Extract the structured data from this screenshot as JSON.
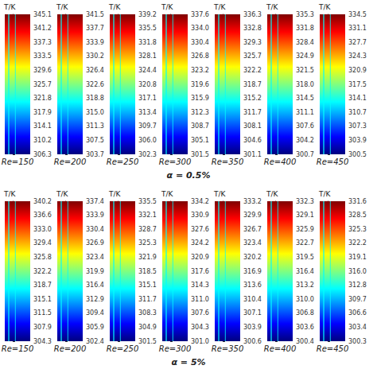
{
  "chart_data": [
    {
      "type": "colorbar",
      "title": "T/K",
      "xlabel": "Re=150",
      "grid": false,
      "ylim": [
        306.3,
        345.1
      ],
      "yticks": [
        345.1,
        {
          "value": 341.22,
          "label": "341.2"
        },
        {
          "value": 337.34,
          "label": "337.3"
        },
        {
          "value": 333.46,
          "label": "333.5"
        },
        {
          "value": 329.58,
          "label": "329.6"
        },
        325.7,
        {
          "value": 321.82,
          "label": "321.8"
        },
        {
          "value": 317.94,
          "label": "317.9"
        },
        {
          "value": 314.06,
          "label": "314.1"
        },
        {
          "value": 310.18,
          "label": "310.2"
        },
        306.3
      ],
      "annotation": "α = 0.5%"
    },
    {
      "type": "colorbar",
      "title": "T/K",
      "xlabel": "Re=200",
      "grid": false,
      "ylim": [
        303.7,
        341.5
      ],
      "yticks": [
        341.5,
        {
          "value": 337.72,
          "label": "337.7"
        },
        {
          "value": 333.94,
          "label": "333.9"
        },
        {
          "value": 330.16,
          "label": "330.2"
        },
        {
          "value": 326.38,
          "label": "326.4"
        },
        322.6,
        {
          "value": 318.82,
          "label": "318.8"
        },
        {
          "value": 315.04,
          "label": "315.0"
        },
        {
          "value": 311.26,
          "label": "311.3"
        },
        {
          "value": 307.48,
          "label": "307.5"
        },
        303.7
      ]
    },
    {
      "type": "colorbar",
      "title": "T/K",
      "xlabel": "Re=250",
      "grid": false,
      "ylim": [
        302.3,
        339.2
      ],
      "yticks": [
        339.2,
        {
          "value": 335.51,
          "label": "335.5"
        },
        {
          "value": 331.82,
          "label": "331.8"
        },
        {
          "value": 328.13,
          "label": "328.1"
        },
        {
          "value": 324.44,
          "label": "324.4"
        },
        {
          "value": 320.75,
          "label": "320.8"
        },
        {
          "value": 317.06,
          "label": "317.1"
        },
        {
          "value": 313.37,
          "label": "313.4"
        },
        {
          "value": 309.68,
          "label": "309.7"
        },
        {
          "value": 305.99,
          "label": "306.0"
        },
        302.3
      ]
    },
    {
      "type": "colorbar",
      "title": "T/K",
      "xlabel": "Re=300",
      "grid": false,
      "ylim": [
        301.5,
        337.6
      ],
      "yticks": [
        337.6,
        {
          "value": 333.99,
          "label": "334.0"
        },
        {
          "value": 330.38,
          "label": "330.4"
        },
        {
          "value": 326.77,
          "label": "326.8"
        },
        {
          "value": 323.16,
          "label": "323.2"
        },
        {
          "value": 319.55,
          "label": "319.6"
        },
        {
          "value": 315.94,
          "label": "315.9"
        },
        {
          "value": 312.33,
          "label": "312.3"
        },
        {
          "value": 308.72,
          "label": "308.7"
        },
        {
          "value": 305.11,
          "label": "305.1"
        },
        301.5
      ]
    },
    {
      "type": "colorbar",
      "title": "T/K",
      "xlabel": "Re=350",
      "grid": false,
      "ylim": [
        301.1,
        336.3
      ],
      "yticks": [
        336.3,
        {
          "value": 332.78,
          "label": "332.8"
        },
        {
          "value": 329.26,
          "label": "329.3"
        },
        {
          "value": 325.74,
          "label": "325.7"
        },
        {
          "value": 322.22,
          "label": "322.2"
        },
        318.7,
        {
          "value": 315.18,
          "label": "315.2"
        },
        {
          "value": 311.66,
          "label": "311.7"
        },
        {
          "value": 308.14,
          "label": "308.1"
        },
        {
          "value": 304.62,
          "label": "304.6"
        },
        301.1
      ]
    },
    {
      "type": "colorbar",
      "title": "T/K",
      "xlabel": "Re=400",
      "grid": false,
      "ylim": [
        300.7,
        335.3
      ],
      "yticks": [
        335.3,
        {
          "value": 331.84,
          "label": "331.8"
        },
        {
          "value": 328.38,
          "label": "328.4"
        },
        {
          "value": 324.92,
          "label": "324.9"
        },
        {
          "value": 321.46,
          "label": "321.5"
        },
        {
          "value": 318,
          "label": "318.0"
        },
        {
          "value": 314.54,
          "label": "314.5"
        },
        {
          "value": 311.08,
          "label": "311.1"
        },
        {
          "value": 307.62,
          "label": "307.6"
        },
        {
          "value": 304.16,
          "label": "304.2"
        },
        300.7
      ]
    },
    {
      "type": "colorbar",
      "title": "T/K",
      "xlabel": "Re=450",
      "grid": false,
      "ylim": [
        300.5,
        334.5
      ],
      "yticks": [
        334.5,
        331.1,
        327.7,
        324.3,
        320.9,
        317.5,
        314.1,
        310.7,
        307.3,
        303.9,
        300.5
      ]
    },
    {
      "type": "colorbar",
      "title": "T/K",
      "xlabel": "Re=150",
      "grid": false,
      "ylim": [
        304.3,
        340.2
      ],
      "yticks": [
        340.2,
        {
          "value": 336.61,
          "label": "336.6"
        },
        {
          "value": 333.02,
          "label": "333.0"
        },
        {
          "value": 329.43,
          "label": "329.4"
        },
        {
          "value": 325.84,
          "label": "325.8"
        },
        {
          "value": 322.25,
          "label": "322.2"
        },
        {
          "value": 318.66,
          "label": "318.7"
        },
        {
          "value": 315.07,
          "label": "315.1"
        },
        {
          "value": 311.48,
          "label": "311.5"
        },
        {
          "value": 307.89,
          "label": "307.9"
        },
        304.3
      ],
      "annotation": "α = 5%"
    },
    {
      "type": "colorbar",
      "title": "T/K",
      "xlabel": "Re=200",
      "grid": false,
      "ylim": [
        302.4,
        337.4
      ],
      "yticks": [
        337.4,
        333.9,
        330.4,
        326.9,
        323.4,
        319.9,
        316.4,
        312.9,
        309.4,
        305.9,
        302.4
      ]
    },
    {
      "type": "colorbar",
      "title": "T/K",
      "xlabel": "Re=250",
      "grid": false,
      "ylim": [
        301.5,
        335.5
      ],
      "yticks": [
        335.5,
        332.1,
        328.7,
        325.3,
        321.9,
        318.5,
        315.1,
        311.7,
        308.3,
        304.9,
        301.5
      ]
    },
    {
      "type": "colorbar",
      "title": "T/K",
      "xlabel": "Re=300",
      "grid": false,
      "ylim": [
        301.0,
        334.2
      ],
      "yticks": [
        334.2,
        {
          "value": 330.88,
          "label": "330.9"
        },
        {
          "value": 327.56,
          "label": "327.6"
        },
        {
          "value": 324.24,
          "label": "324.2"
        },
        {
          "value": 320.92,
          "label": "320.9"
        },
        317.6,
        {
          "value": 314.28,
          "label": "314.3"
        },
        {
          "value": 310.96,
          "label": "311.0"
        },
        {
          "value": 307.64,
          "label": "307.6"
        },
        {
          "value": 304.32,
          "label": "304.3"
        },
        {
          "value": 301,
          "label": "301.0"
        }
      ]
    },
    {
      "type": "colorbar",
      "title": "T/K",
      "xlabel": "Re=350",
      "grid": false,
      "ylim": [
        300.6,
        333.2
      ],
      "yticks": [
        333.2,
        {
          "value": 329.94,
          "label": "329.9"
        },
        {
          "value": 326.68,
          "label": "326.7"
        },
        {
          "value": 323.42,
          "label": "323.4"
        },
        {
          "value": 320.16,
          "label": "320.2"
        },
        316.9,
        {
          "value": 313.64,
          "label": "313.6"
        },
        {
          "value": 310.38,
          "label": "310.4"
        },
        {
          "value": 307.12,
          "label": "307.1"
        },
        {
          "value": 303.86,
          "label": "303.9"
        },
        300.6
      ]
    },
    {
      "type": "colorbar",
      "title": "T/K",
      "xlabel": "Re=400",
      "grid": false,
      "ylim": [
        300.4,
        332.3
      ],
      "yticks": [
        332.3,
        {
          "value": 329.11,
          "label": "329.1"
        },
        {
          "value": 325.92,
          "label": "325.9"
        },
        {
          "value": 322.73,
          "label": "322.7"
        },
        {
          "value": 319.54,
          "label": "319.5"
        },
        {
          "value": 316.35,
          "label": "316.4"
        },
        {
          "value": 313.16,
          "label": "313.2"
        },
        {
          "value": 309.97,
          "label": "310.0"
        },
        {
          "value": 306.78,
          "label": "306.8"
        },
        {
          "value": 303.59,
          "label": "303.6"
        },
        300.4
      ]
    },
    {
      "type": "colorbar",
      "title": "T/K",
      "xlabel": "Re=450",
      "grid": false,
      "ylim": [
        300.3,
        331.6
      ],
      "yticks": [
        331.6,
        {
          "value": 328.47,
          "label": "328.5"
        },
        {
          "value": 325.34,
          "label": "325.3"
        },
        {
          "value": 322.21,
          "label": "322.2"
        },
        {
          "value": 319.08,
          "label": "319.1"
        },
        {
          "value": 315.95,
          "label": "316.0"
        },
        {
          "value": 312.82,
          "label": "312.8"
        },
        {
          "value": 309.69,
          "label": "309.7"
        },
        {
          "value": 306.56,
          "label": "306.6"
        },
        {
          "value": 303.43,
          "label": "303.4"
        },
        300.3
      ]
    }
  ]
}
